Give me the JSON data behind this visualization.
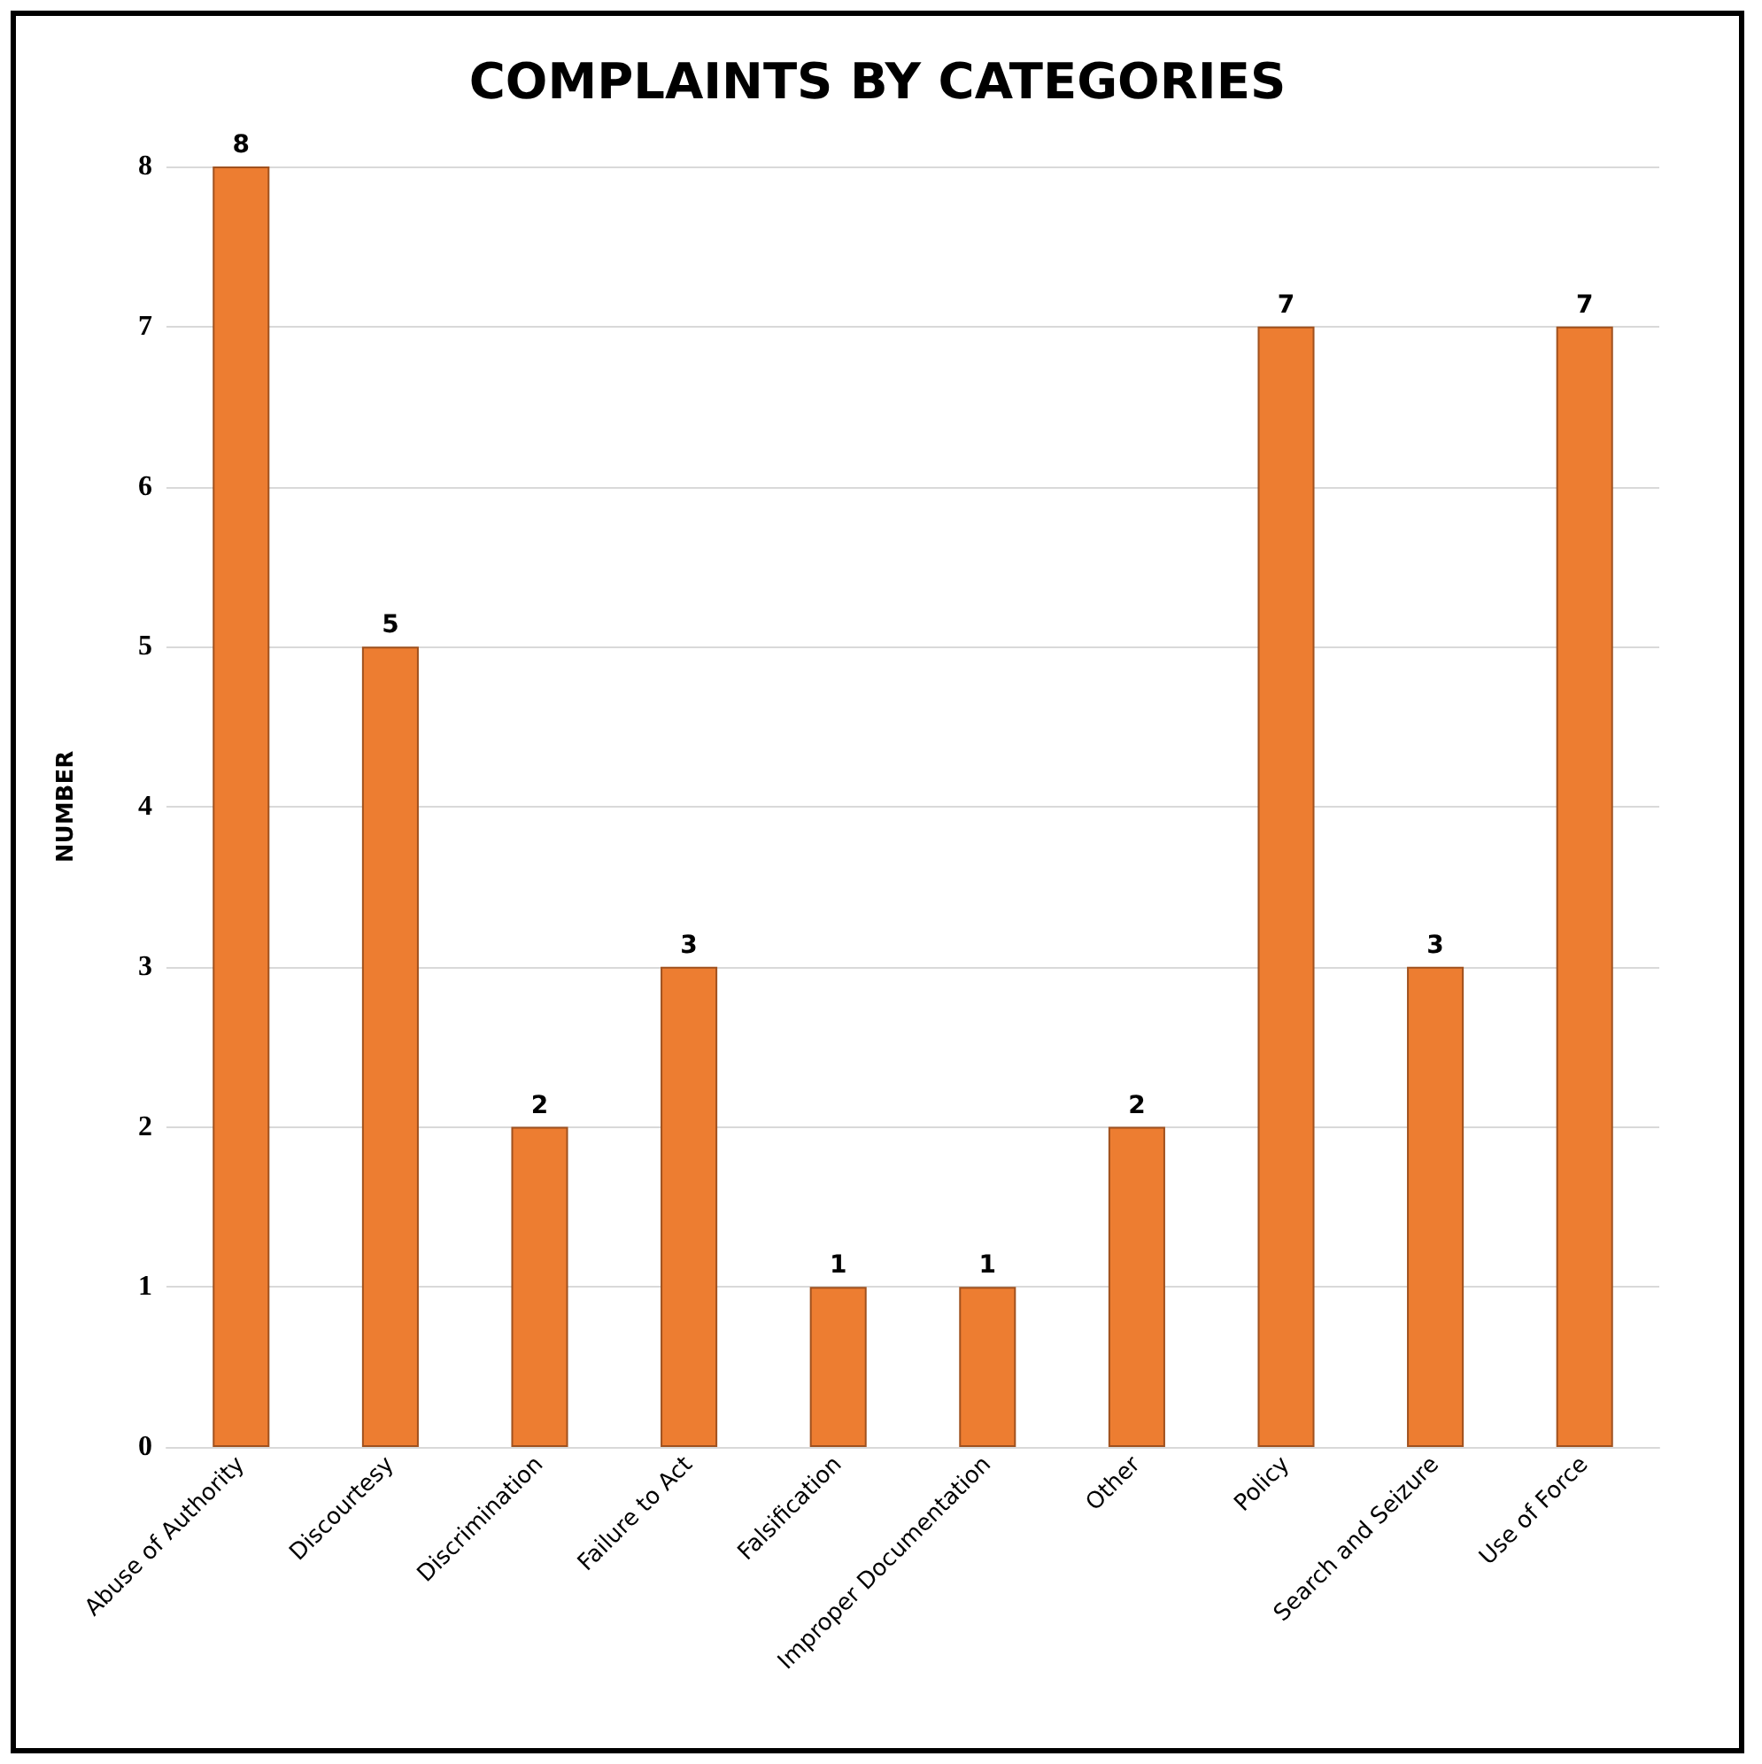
{
  "chart_data": {
    "type": "bar",
    "title": "COMPLAINTS BY CATEGORIES",
    "ylabel": "NUMBER",
    "categories": [
      "Abuse of Authority",
      "Discourtesy",
      "Discrimination",
      "Failure to Act",
      "Falsification",
      "Improper Documentation",
      "Other",
      "Policy",
      "Search and Seizure",
      "Use of Force"
    ],
    "values": [
      8,
      5,
      2,
      3,
      1,
      1,
      2,
      7,
      3,
      7
    ],
    "color": "#ed7d31",
    "ylim": [
      0,
      8
    ],
    "yticks": [
      0,
      1,
      2,
      3,
      4,
      5,
      6,
      7,
      8
    ],
    "grid": "y",
    "data_labels": true
  }
}
